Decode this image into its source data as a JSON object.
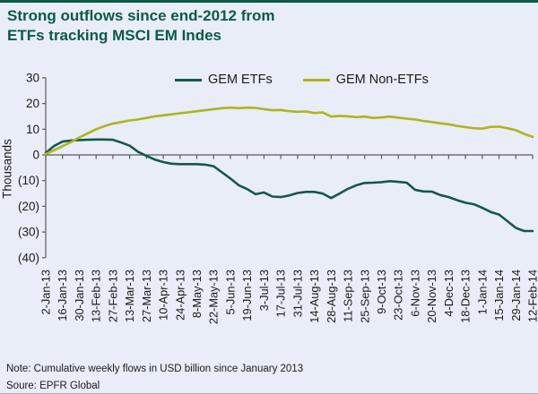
{
  "title": {
    "line1": "Strong outflows since end-2012 from",
    "line2": "ETFs tracking MSCI EM Indes"
  },
  "footer": {
    "note": "Note: Cumulative weekly flows in USD billion since January 2013",
    "source": "Soure: EPFR Global"
  },
  "colors": {
    "background": "#e9edf7",
    "title_green": "#0b5a46",
    "gem_etfs_line": "#155848",
    "gem_non_etfs_line": "#adb51e",
    "axis": "#5a5a5a",
    "tick_text": "#1a1a1a",
    "top_rule": "#0b5a46"
  },
  "chart_data": {
    "type": "line",
    "title": "",
    "xlabel": "",
    "ylabel": "Thousands",
    "ylim": [
      -40,
      30
    ],
    "grid": false,
    "legend_position": "top-inside",
    "negative_number_format": "parentheses",
    "y_ticks": [
      {
        "value": 30,
        "label": "30"
      },
      {
        "value": 20,
        "label": "20"
      },
      {
        "value": 10,
        "label": "10"
      },
      {
        "value": 0,
        "label": "0"
      },
      {
        "value": -10,
        "label": "(10)"
      },
      {
        "value": -20,
        "label": "(20)"
      },
      {
        "value": -30,
        "label": "(30)"
      },
      {
        "value": -40,
        "label": "(40)"
      }
    ],
    "x_labels": [
      "2-Jan-13",
      "16-Jan-13",
      "30-Jan-13",
      "13-Feb-13",
      "27-Feb-13",
      "13-Mar-13",
      "27-Mar-13",
      "10-Apr-13",
      "24-Apr-13",
      "8-May-13",
      "22-May-13",
      "5-Jun-13",
      "19-Jun-13",
      "3-Jul-13",
      "17-Jul-13",
      "31-Jul-13",
      "14-Aug-13",
      "28-Aug-13",
      "11-Sep-13",
      "25-Sep-13",
      "9-Oct-13",
      "23-Oct-13",
      "6-Nov-13",
      "20-Nov-13",
      "4-Dec-13",
      "18-Dec-13",
      "1-Jan-14",
      "15-Jan-14",
      "29-Jan-14",
      "12-Feb-14"
    ],
    "points_per_x_label": 2,
    "series": [
      {
        "name": "GEM ETFs",
        "color": "#155848",
        "values": [
          0.8,
          3.5,
          5.2,
          5.6,
          5.8,
          5.9,
          6.0,
          6.0,
          5.9,
          4.8,
          3.6,
          1.2,
          -0.4,
          -1.8,
          -2.8,
          -3.4,
          -3.6,
          -3.6,
          -3.6,
          -3.8,
          -4.4,
          -6.8,
          -9.2,
          -11.8,
          -13.3,
          -15.3,
          -14.6,
          -16.2,
          -16.4,
          -15.8,
          -14.8,
          -14.4,
          -14.4,
          -15.0,
          -16.8,
          -15.0,
          -13.2,
          -11.8,
          -10.9,
          -10.8,
          -10.6,
          -10.2,
          -10.5,
          -10.8,
          -13.6,
          -14.2,
          -14.3,
          -15.6,
          -16.4,
          -17.6,
          -18.6,
          -19.2,
          -20.6,
          -22.2,
          -23.2,
          -25.8,
          -28.4,
          -29.6,
          -29.6
        ]
      },
      {
        "name": "GEM Non-ETFs",
        "color": "#adb51e",
        "values": [
          0.4,
          1.8,
          3.4,
          5.0,
          6.8,
          8.4,
          10.0,
          11.2,
          12.2,
          12.8,
          13.4,
          13.8,
          14.4,
          15.0,
          15.4,
          15.8,
          16.2,
          16.6,
          17.0,
          17.4,
          17.8,
          18.2,
          18.4,
          18.2,
          18.4,
          18.3,
          17.8,
          17.4,
          17.5,
          17.0,
          16.8,
          16.9,
          16.3,
          16.5,
          14.9,
          15.2,
          15.0,
          14.7,
          14.9,
          14.4,
          14.6,
          14.9,
          14.5,
          14.1,
          13.8,
          13.2,
          12.8,
          12.3,
          11.9,
          11.3,
          10.8,
          10.4,
          10.2,
          10.9,
          11.0,
          10.4,
          9.6,
          8.2,
          7.0
        ]
      }
    ]
  }
}
